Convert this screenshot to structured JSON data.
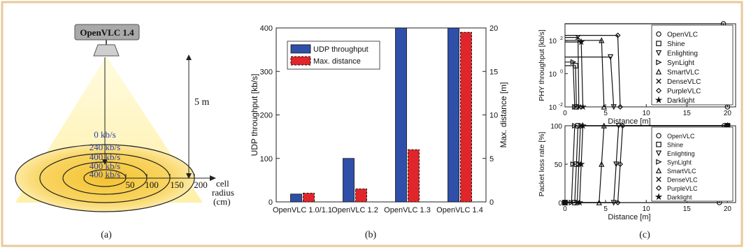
{
  "colors": {
    "frame": "#e8c89a",
    "beam": "#fff3b0",
    "disc_outer": "#ffe89a",
    "disc_inner": "#f7c93a",
    "rate_text": "#2b3f9e",
    "bar_udp": "#2f4fa8",
    "bar_dist": "#e0252b"
  },
  "panel_a": {
    "device_label": "OpenVLC 1.4",
    "height_label": "5 m",
    "rates": [
      "0 kb/s",
      "240 kb/s",
      "400 kb/s",
      "400 kb/s",
      "400 kb/s"
    ],
    "radius_ticks": [
      "50",
      "100",
      "150",
      "200"
    ],
    "radius_label_1": "cell",
    "radius_label_2": "radius",
    "radius_label_3": "(cm)",
    "caption": "(a)"
  },
  "panel_b": {
    "caption": "(b)"
  },
  "panel_c": {
    "caption": "(c)"
  },
  "chart_data": [
    {
      "type": "bar",
      "categories": [
        "OpenVLC 1.0/1.1",
        "OpenVLC 1.2",
        "OpenVLC 1.3",
        "OpenVLC 1.4"
      ],
      "series": [
        {
          "name": "UDP throughput",
          "axis": "left",
          "values": [
            18,
            100,
            400,
            400
          ]
        },
        {
          "name": "Max. distance",
          "axis": "right",
          "values": [
            1,
            1.5,
            6,
            19.5
          ]
        }
      ],
      "ylabel": "UDP throughput [kb/s]",
      "ylim": [
        0,
        400
      ],
      "yticks": [
        "0",
        "100",
        "200",
        "300",
        "400"
      ],
      "y2label": "Max. distance [m]",
      "y2lim": [
        0,
        20
      ],
      "y2ticks": [
        "0",
        "5",
        "10",
        "15",
        "20"
      ],
      "legend": "top-left"
    },
    {
      "type": "line",
      "scale_y": "log",
      "ylabel": "PHY throughput [kb/s]",
      "xlabel": "Distance [m]",
      "xlim": [
        0,
        21
      ],
      "xticks": [
        "0",
        "5",
        "10",
        "15",
        "20"
      ],
      "ylim": [
        0.01,
        1000
      ],
      "yticks": [
        {
          "base": "10",
          "exp": "-2",
          "value": 0.01
        },
        {
          "base": "10",
          "exp": "0",
          "value": 1
        },
        {
          "base": "10",
          "exp": "2",
          "value": 100
        }
      ],
      "legend": "right",
      "series": [
        {
          "name": "OpenVLC",
          "marker": "circle",
          "x": [
            0,
            19.5,
            20
          ],
          "y": [
            1000,
            1000,
            0.01
          ]
        },
        {
          "name": "Shine",
          "marker": "square",
          "x": [
            0,
            1.3,
            1.4
          ],
          "y": [
            3,
            3,
            0.01
          ]
        },
        {
          "name": "Enlighting",
          "marker": "triangle-down",
          "x": [
            0,
            5.6,
            6.0
          ],
          "y": [
            10,
            10,
            0.01
          ]
        },
        {
          "name": "SynLight",
          "marker": "triangle-right",
          "x": [
            0,
            1.0,
            1.2
          ],
          "y": [
            5,
            5,
            0.01
          ]
        },
        {
          "name": "SmartVLC",
          "marker": "triangle-up",
          "x": [
            0,
            4.5,
            4.8
          ],
          "y": [
            100,
            100,
            0.01
          ]
        },
        {
          "name": "DenseVLC",
          "marker": "x",
          "x": [
            0,
            1.6,
            1.7
          ],
          "y": [
            150,
            150,
            0.01
          ]
        },
        {
          "name": "PurpleVLC",
          "marker": "diamond",
          "x": [
            0,
            6.5,
            6.8
          ],
          "y": [
            200,
            200,
            0.01
          ]
        },
        {
          "name": "Darklight",
          "marker": "star",
          "x": [
            0,
            2.0,
            2.2
          ],
          "y": [
            80,
            80,
            0.01
          ]
        }
      ]
    },
    {
      "type": "line",
      "ylabel": "Packet loss rate [%]",
      "xlabel": "Distance [m]",
      "xlim": [
        0,
        21
      ],
      "xticks": [
        "0",
        "5",
        "10",
        "15",
        "20"
      ],
      "ylim": [
        0,
        100
      ],
      "yticks": [
        "0",
        "50",
        "100"
      ],
      "legend": "right",
      "series": [
        {
          "name": "OpenVLC",
          "marker": "circle",
          "x": [
            0,
            19,
            19.3,
            19.6,
            20
          ],
          "y": [
            0,
            0,
            50,
            100,
            100
          ]
        },
        {
          "name": "Shine",
          "marker": "square",
          "x": [
            0,
            1.2,
            1.4,
            1.6,
            20
          ],
          "y": [
            0,
            0,
            50,
            100,
            100
          ]
        },
        {
          "name": "Enlighting",
          "marker": "triangle-down",
          "x": [
            0,
            6.0,
            6.3,
            6.6,
            20
          ],
          "y": [
            0,
            0,
            50,
            100,
            100
          ]
        },
        {
          "name": "SynLight",
          "marker": "triangle-right",
          "x": [
            0,
            0.8,
            1.0,
            1.2,
            20
          ],
          "y": [
            0,
            0,
            50,
            100,
            100
          ]
        },
        {
          "name": "SmartVLC",
          "marker": "triangle-up",
          "x": [
            0,
            4.2,
            4.5,
            4.8,
            20
          ],
          "y": [
            0,
            0,
            50,
            100,
            100
          ]
        },
        {
          "name": "DenseVLC",
          "marker": "x",
          "x": [
            0,
            1.5,
            1.7,
            1.9,
            20
          ],
          "y": [
            0,
            0,
            50,
            100,
            100
          ]
        },
        {
          "name": "PurpleVLC",
          "marker": "diamond",
          "x": [
            0,
            6.5,
            6.8,
            7.1,
            20
          ],
          "y": [
            0,
            0,
            50,
            100,
            100
          ]
        },
        {
          "name": "Darklight",
          "marker": "star",
          "x": [
            0,
            1.8,
            2.0,
            2.2,
            20
          ],
          "y": [
            0,
            0,
            50,
            100,
            100
          ]
        }
      ]
    }
  ]
}
